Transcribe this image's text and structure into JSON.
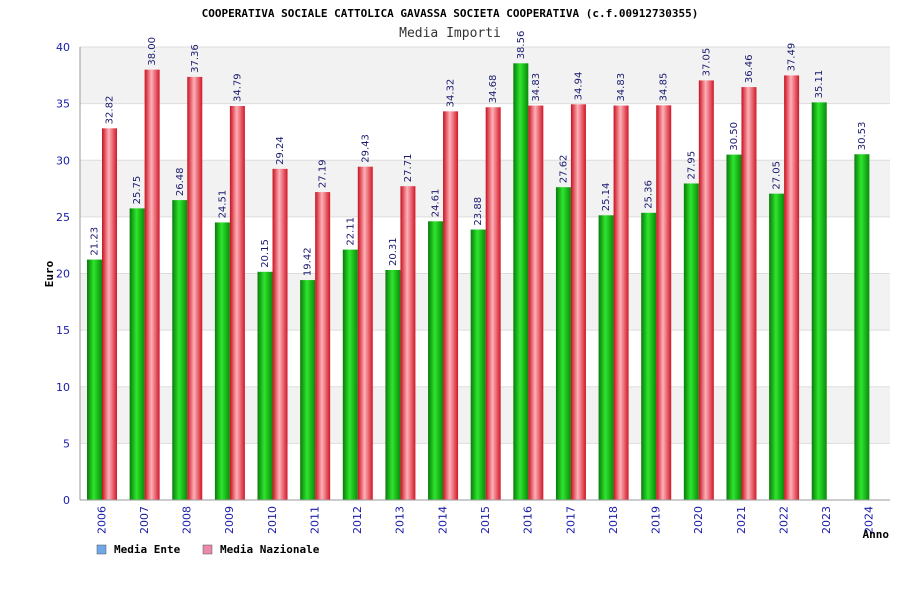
{
  "chart_data": {
    "type": "bar",
    "title": "COOPERATIVA SOCIALE CATTOLICA GAVASSA SOCIETA COOPERATIVA (c.f.00912730355)",
    "subtitle": "Media Importi",
    "ylabel": "Euro",
    "xlabel": "Anno",
    "ylim": [
      0,
      40
    ],
    "yticks": [
      0,
      5,
      10,
      15,
      20,
      25,
      30,
      35,
      40
    ],
    "grid": true,
    "legend_position": "bottom-left",
    "categories": [
      "2006",
      "2007",
      "2008",
      "2009",
      "2010",
      "2011",
      "2012",
      "2013",
      "2014",
      "2015",
      "2016",
      "2017",
      "2018",
      "2019",
      "2020",
      "2021",
      "2022",
      "2023",
      "2024"
    ],
    "series": [
      {
        "name": "Media Ente",
        "legend_color": "#6fa8e8",
        "bar_color": "#1db81d",
        "values": [
          21.23,
          25.75,
          26.48,
          24.51,
          20.15,
          19.42,
          22.11,
          20.31,
          24.61,
          23.88,
          38.56,
          27.62,
          25.14,
          25.36,
          27.95,
          30.5,
          27.05,
          35.11,
          30.53
        ],
        "labels": [
          "21.23",
          "25.75",
          "26.48",
          "24.51",
          "20.15",
          "19.42",
          "22.11",
          "20.31",
          "24.61",
          "23.88",
          "38.56",
          "27.62",
          "25.14",
          "25.36",
          "27.95",
          "30.50",
          "27.05",
          "35.11",
          "30.53"
        ]
      },
      {
        "name": "Media Nazionale",
        "legend_color": "#e88aa8",
        "bar_color": "#e8283a",
        "values": [
          32.82,
          38.0,
          37.36,
          34.79,
          29.24,
          27.19,
          29.43,
          27.71,
          34.32,
          34.68,
          34.83,
          34.94,
          34.83,
          34.85,
          37.05,
          36.46,
          37.49,
          null,
          null
        ],
        "labels": [
          "32.82",
          "38.00",
          "37.36",
          "34.79",
          "29.24",
          "27.19",
          "29.43",
          "27.71",
          "34.32",
          "34.68",
          "34.83",
          "34.94",
          "34.83",
          "34.85",
          "37.05",
          "36.46",
          "37.49",
          null,
          null
        ]
      }
    ]
  }
}
